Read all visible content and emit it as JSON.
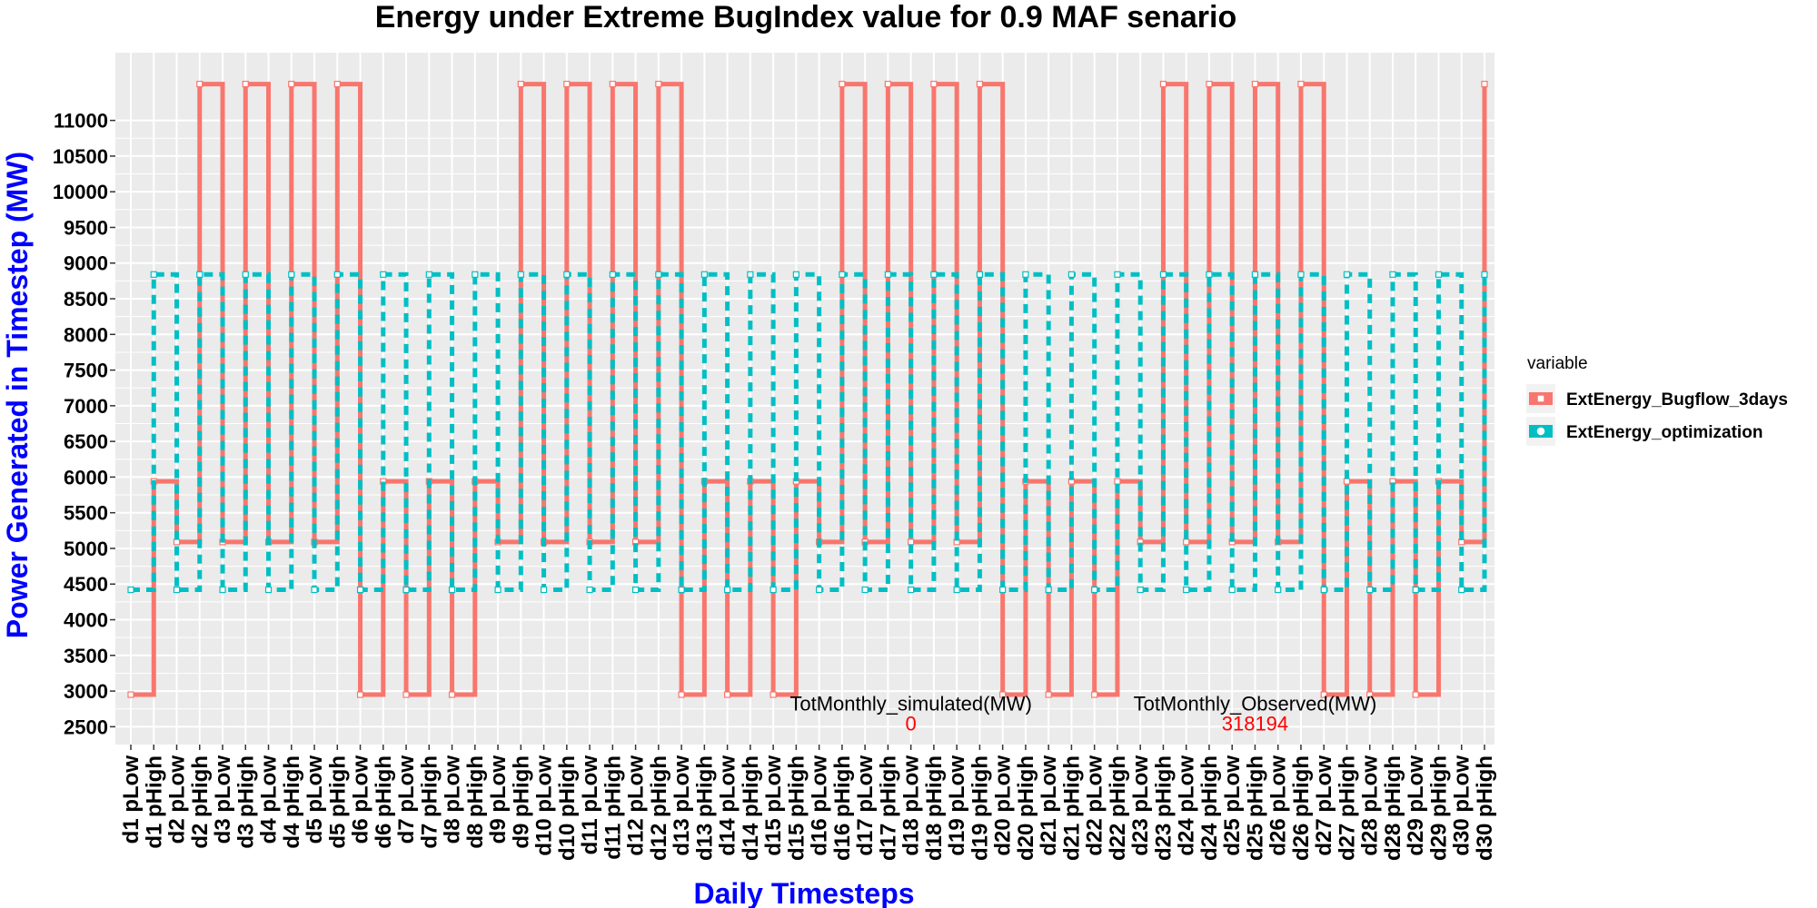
{
  "chart_data": {
    "type": "line",
    "title": "Energy under Extreme BugIndex value for 0.9 MAF senario",
    "xlabel": "Daily Timesteps",
    "ylabel": "Power Generated in Timestep (MW)",
    "ylim": [
      2250,
      11950
    ],
    "yticks": [
      2500,
      3000,
      3500,
      4000,
      4500,
      5000,
      5500,
      6000,
      6500,
      7000,
      7500,
      8000,
      8500,
      9000,
      9500,
      10000,
      10500,
      11000
    ],
    "grid": true,
    "legend_position": "right",
    "legend_title": "variable",
    "categories": [
      "d1 pLow",
      "d1 pHigh",
      "d2 pLow",
      "d2 pHigh",
      "d3 pLow",
      "d3 pHigh",
      "d4 pLow",
      "d4 pHigh",
      "d5 pLow",
      "d5 pHigh",
      "d6 pLow",
      "d6 pHigh",
      "d7 pLow",
      "d7 pHigh",
      "d8 pLow",
      "d8 pHigh",
      "d9 pLow",
      "d9 pHigh",
      "d10 pLow",
      "d10 pHigh",
      "d11 pLow",
      "d11 pHigh",
      "d12 pLow",
      "d12 pHigh",
      "d13 pLow",
      "d13 pHigh",
      "d14 pLow",
      "d14 pHigh",
      "d15 pLow",
      "d15 pHigh",
      "d16 pLow",
      "d16 pHigh",
      "d17 pLow",
      "d17 pHigh",
      "d18 pLow",
      "d18 pHigh",
      "d19 pLow",
      "d19 pHigh",
      "d20 pLow",
      "d20 pHigh",
      "d21 pLow",
      "d21 pHigh",
      "d22 pLow",
      "d22 pHigh",
      "d23 pLow",
      "d23 pHigh",
      "d24 pLow",
      "d24 pHigh",
      "d25 pLow",
      "d25 pHigh",
      "d26 pLow",
      "d26 pHigh",
      "d27 pLow",
      "d27 pHigh",
      "d28 pLow",
      "d28 pHigh",
      "d29 pLow",
      "d29 pHigh",
      "d30 pLow",
      "d30 pHigh"
    ],
    "series": [
      {
        "name": "ExtEnergy_Bugflow_3days",
        "color": "#F8766D",
        "line": "solid",
        "values": [
          2950,
          5940,
          5090,
          11510,
          5090,
          11510,
          5090,
          11510,
          5090,
          11510,
          2950,
          5940,
          2950,
          5940,
          2950,
          5940,
          5090,
          11510,
          5090,
          11510,
          5090,
          11510,
          5090,
          11510,
          2950,
          5940,
          2950,
          5940,
          2950,
          5940,
          5090,
          11510,
          5090,
          11510,
          5090,
          11510,
          5090,
          11510,
          2950,
          5940,
          2950,
          5940,
          2950,
          5940,
          5090,
          11510,
          5090,
          11510,
          5090,
          11510,
          5090,
          11510,
          2950,
          5940,
          2950,
          5940,
          2950,
          5940,
          5090,
          11510
        ]
      },
      {
        "name": "ExtEnergy_optimization",
        "color": "#00BFC4",
        "line": "dashed",
        "values": [
          4420,
          8840,
          4420,
          8840,
          4420,
          8840,
          4420,
          8840,
          4420,
          8840,
          4420,
          8840,
          4420,
          8840,
          4420,
          8840,
          4420,
          8840,
          4420,
          8840,
          4420,
          8840,
          4420,
          8840,
          4420,
          8840,
          4420,
          8840,
          4420,
          8840,
          4420,
          8840,
          4420,
          8840,
          4420,
          8840,
          4420,
          8840,
          4420,
          8840,
          4420,
          8840,
          4420,
          8840,
          4420,
          8840,
          4420,
          8840,
          4420,
          8840,
          4420,
          8840,
          4420,
          8840,
          4420,
          8840,
          4420,
          8840,
          4420,
          8840
        ]
      }
    ],
    "annotations": [
      {
        "label": "TotMonthly_simulated(MW)",
        "value": "0",
        "category": "d18 pLow",
        "y": 2730
      },
      {
        "label": "TotMonthly_Observed(MW)",
        "value": "318194",
        "category": "d25 pHigh",
        "y": 2730
      }
    ]
  }
}
